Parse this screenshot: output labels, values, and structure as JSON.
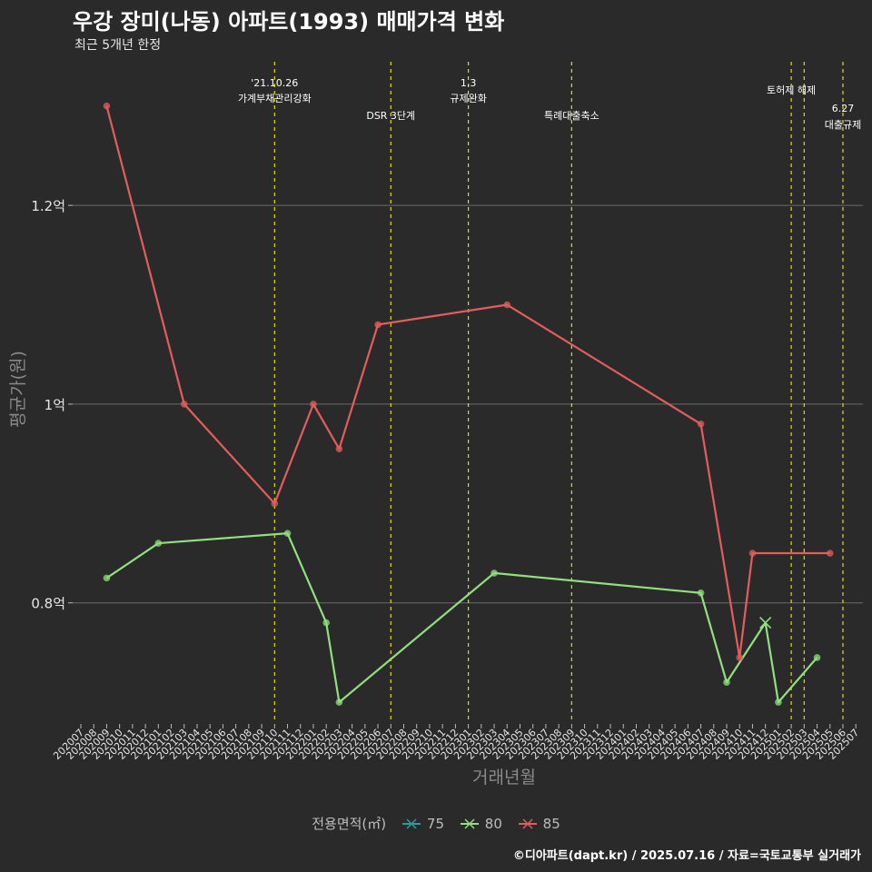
{
  "header": {
    "title": "우강 장미(나동) 아파트(1993) 매매가격 변화",
    "subtitle": "최근 5개년 한정"
  },
  "footer": {
    "credit": "©디아파트(dapt.kr) / 2025.07.16 / 자료=국토교통부 실거래가"
  },
  "legend": {
    "title": "전용면적(㎡)",
    "items": [
      {
        "label": "75",
        "color": "#2a9d9a"
      },
      {
        "label": "80",
        "color": "#90e07e"
      },
      {
        "label": "85",
        "color": "#e35d5d"
      }
    ]
  },
  "chart_data": {
    "type": "line",
    "xlabel": "거래년월",
    "ylabel": "평균가(원)",
    "ylim": [
      0.68,
      1.35
    ],
    "y_ticks": [
      {
        "value": 0.8,
        "label": "0.8억"
      },
      {
        "value": 1.0,
        "label": "1억"
      },
      {
        "value": 1.2,
        "label": "1.2억"
      }
    ],
    "x_categories": [
      "202007",
      "202008",
      "202009",
      "202010",
      "202011",
      "202012",
      "202101",
      "202102",
      "202103",
      "202104",
      "202105",
      "202106",
      "202107",
      "202108",
      "202109",
      "202110",
      "202111",
      "202112",
      "202201",
      "202202",
      "202203",
      "202204",
      "202205",
      "202206",
      "202207",
      "202208",
      "202209",
      "202210",
      "202211",
      "202212",
      "202301",
      "202302",
      "202303",
      "202304",
      "202305",
      "202306",
      "202307",
      "202308",
      "202309",
      "202310",
      "202311",
      "202312",
      "202401",
      "202402",
      "202403",
      "202404",
      "202405",
      "202406",
      "202407",
      "202408",
      "202409",
      "202410",
      "202411",
      "202412",
      "202501",
      "202502",
      "202503",
      "202504",
      "202505",
      "202506",
      "202507"
    ],
    "grid": true,
    "legend_position": "bottom",
    "series": [
      {
        "name": "75",
        "color": "#2a9d9a",
        "points": []
      },
      {
        "name": "80",
        "color": "#90e07e",
        "points": [
          {
            "x": "202009",
            "y": 0.825
          },
          {
            "x": "202101",
            "y": 0.86
          },
          {
            "x": "202111",
            "y": 0.87
          },
          {
            "x": "202202",
            "y": 0.78
          },
          {
            "x": "202203",
            "y": 0.7
          },
          {
            "x": "202303",
            "y": 0.83
          },
          {
            "x": "202407",
            "y": 0.81
          },
          {
            "x": "202409",
            "y": 0.72
          },
          {
            "x": "202412",
            "y": 0.78,
            "marker": "x"
          },
          {
            "x": "202501",
            "y": 0.7
          },
          {
            "x": "202504",
            "y": 0.745
          }
        ]
      },
      {
        "name": "85",
        "color": "#e35d5d",
        "points": [
          {
            "x": "202009",
            "y": 1.3
          },
          {
            "x": "202103",
            "y": 1.0
          },
          {
            "x": "202110",
            "y": 0.9
          },
          {
            "x": "202201",
            "y": 1.0
          },
          {
            "x": "202203",
            "y": 0.955
          },
          {
            "x": "202206",
            "y": 1.08
          },
          {
            "x": "202304",
            "y": 1.1
          },
          {
            "x": "202407",
            "y": 0.98
          },
          {
            "x": "202410",
            "y": 0.745
          },
          {
            "x": "202411",
            "y": 0.85
          },
          {
            "x": "202505",
            "y": 0.85
          }
        ]
      }
    ],
    "annotations": [
      {
        "x": "202110",
        "line1": "'21.10.26",
        "line2": "가계부채관리강화",
        "level": "high"
      },
      {
        "x": "202207",
        "line1": "DSR 3단계",
        "line2": "",
        "level": "low"
      },
      {
        "x": "202301",
        "line1": "1.3",
        "line2": "규제완화",
        "level": "high"
      },
      {
        "x": "202309",
        "line1": "특례대출축소",
        "line2": "",
        "level": "low"
      },
      {
        "x": "202502",
        "line1": "토허제 해제",
        "line2": "",
        "level": "mid"
      },
      {
        "x": "202503",
        "line1": "",
        "line2": "",
        "level": "none"
      },
      {
        "x": "202506",
        "line1": "6.27",
        "line2": "대출규제",
        "level": "lowest"
      }
    ]
  }
}
